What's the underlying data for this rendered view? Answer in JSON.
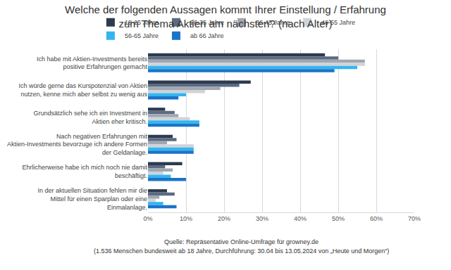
{
  "chart_data": {
    "type": "bar",
    "orientation": "horizontal",
    "title": "Welche der folgenden Aussagen kommt Ihrer Einstellung / Erfahrung zum Thema Aktien am nächsten? (nach Alter)",
    "title_lines": [
      "Welche der folgenden Aussagen kommt Ihrer Einstellung / Erfahrung",
      "zum Thema Aktien am nächsten? (nach Alter)"
    ],
    "categories": [
      "Ich habe mit Aktien-Investments bereits positive Erfahrungen gemacht",
      "Ich würde gerne das Kurspotenzial von Aktien nutzen, kenne mich aber selbst zu wenig aus",
      "Grundsätzlich sehe ich ein Investment in Aktien eher kritisch.",
      "Nach negativen Erfahrungen mit Aktien-Investments bevorzuge ich andere Formen der Geldanlage.",
      "Ehrlicherweise habe ich mich noch nie damit beschäftigt.",
      "In der aktuellen Situation fehlen mir die Mittel für einen Sparplan oder eine Einmalanlage."
    ],
    "series": [
      {
        "name": "18-25 Jahre",
        "color": "#2e3a4f",
        "values": [
          46.5,
          27,
          4.5,
          6.5,
          9,
          5
        ]
      },
      {
        "name": "26-35 Jahre",
        "color": "#5a6b82",
        "values": [
          50,
          24,
          7,
          7.5,
          4.5,
          7
        ]
      },
      {
        "name": "36-45 Jahre",
        "color": "#a0a7b1",
        "values": [
          57,
          19,
          8,
          5,
          6.5,
          3
        ]
      },
      {
        "name": "46-55 Jahre",
        "color": "#d0d3d8",
        "values": [
          57,
          15,
          11,
          12,
          4,
          2
        ]
      },
      {
        "name": "56-65 Jahre",
        "color": "#33b5f0",
        "values": [
          55,
          10,
          13.5,
          12,
          6,
          4
        ]
      },
      {
        "name": "ab 66 Jahre",
        "color": "#1a74c9",
        "values": [
          49,
          8,
          13.5,
          12,
          10,
          7.5
        ]
      }
    ],
    "xlim": [
      0,
      70
    ],
    "xticks": [
      {
        "value": 0,
        "label": "0%"
      },
      {
        "value": 10,
        "label": "10%"
      },
      {
        "value": 20,
        "label": "20%"
      },
      {
        "value": 30,
        "label": "30%"
      },
      {
        "value": 40,
        "label": "40%"
      },
      {
        "value": 50,
        "label": "50%"
      },
      {
        "value": 60,
        "label": "60%"
      },
      {
        "value": 70,
        "label": "70%"
      }
    ],
    "grid": true,
    "legend": "top",
    "notes": [
      "Quelle: Repräsentative Online-Umfrage für growney.de",
      "(1.536 Menschen bundesweit ab 18 Jahre, Durchführung: 30.04 bis 13.05.2024 von „Heute und Morgen“)"
    ]
  }
}
